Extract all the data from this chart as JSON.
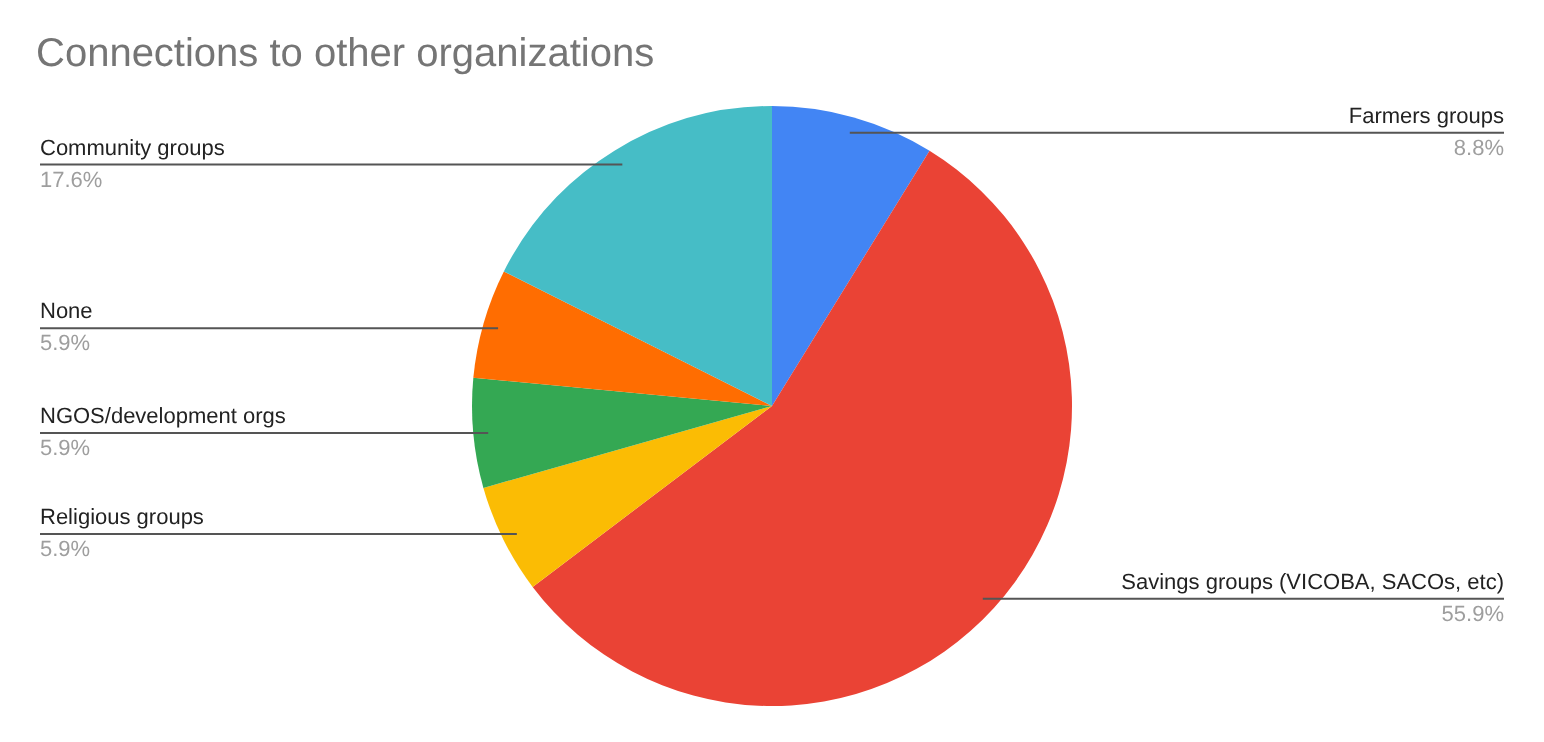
{
  "chart_data": {
    "type": "pie",
    "title": "Connections to other organizations",
    "categories": [
      "Farmers groups",
      "Savings groups (VICOBA, SACOs, etc)",
      "Religious groups",
      "NGOS/development orgs",
      "None",
      "Community groups"
    ],
    "values": [
      8.8,
      55.9,
      5.9,
      5.9,
      5.9,
      17.6
    ],
    "colors": [
      "#4285f4",
      "#ea4335",
      "#fbbc04",
      "#34a853",
      "#ff6d01",
      "#46bdc6"
    ],
    "value_labels": [
      "8.8%",
      "55.9%",
      "5.9%",
      "5.9%",
      "5.9%",
      "17.6%"
    ],
    "legend": false
  }
}
